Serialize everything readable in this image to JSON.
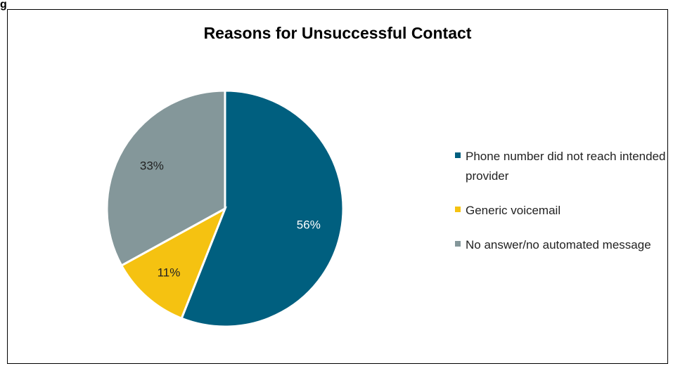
{
  "figure_label": "g",
  "chart_data": {
    "type": "pie",
    "title": "Reasons for Unsuccessful Contact",
    "slices": [
      {
        "label": "Phone number did not reach intended provider",
        "value": 56,
        "data_label": "56%",
        "color": "#005F7F",
        "label_color": "#ffffff"
      },
      {
        "label": "Generic voicemail",
        "value": 11,
        "data_label": "11%",
        "color": "#F5C211",
        "label_color": "#222222"
      },
      {
        "label": "No answer/no automated message",
        "value": 33,
        "data_label": "33%",
        "color": "#84979A",
        "label_color": "#222222"
      }
    ],
    "legend_placement": "right"
  }
}
